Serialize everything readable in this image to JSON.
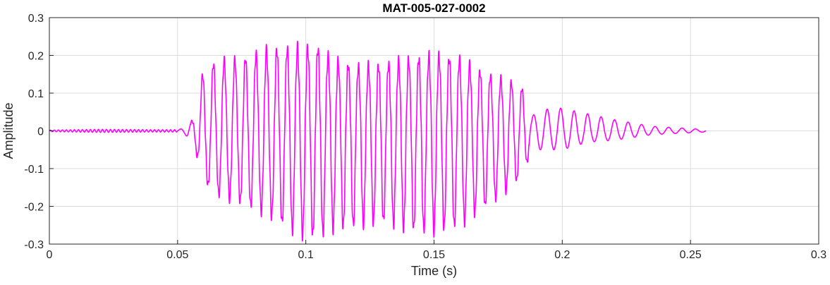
{
  "chart_data": {
    "type": "line",
    "title": "MAT-005-027-0002",
    "xlabel": "Time (s)",
    "ylabel": "Amplitude",
    "xlim": [
      0,
      0.3
    ],
    "ylim": [
      -0.3,
      0.3
    ],
    "x_ticks": [
      0,
      0.05,
      0.1,
      0.15,
      0.2,
      0.25,
      0.3
    ],
    "x_tick_labels": [
      "0",
      "0.05",
      "0.1",
      "0.15",
      "0.2",
      "0.25",
      "0.3"
    ],
    "y_ticks": [
      -0.3,
      -0.2,
      -0.1,
      0,
      0.1,
      0.2,
      0.3
    ],
    "y_tick_labels": [
      "-0.3",
      "-0.2",
      "-0.1",
      "0",
      "0.1",
      "0.2",
      "0.3"
    ],
    "grid": true,
    "series": [
      {
        "color": "#ff00ff",
        "x_range": [
          0,
          0.256
        ],
        "envelope": [
          {
            "t": 0.0,
            "max": 0.002,
            "min": -0.002
          },
          {
            "t": 0.02,
            "max": 0.004,
            "min": -0.004
          },
          {
            "t": 0.04,
            "max": 0.003,
            "min": -0.003
          },
          {
            "t": 0.05,
            "max": 0.003,
            "min": -0.003
          },
          {
            "t": 0.053,
            "max": 0.008,
            "min": -0.01
          },
          {
            "t": 0.056,
            "max": 0.03,
            "min": -0.035
          },
          {
            "t": 0.058,
            "max": 0.12,
            "min": -0.075
          },
          {
            "t": 0.061,
            "max": 0.17,
            "min": -0.14
          },
          {
            "t": 0.066,
            "max": 0.185,
            "min": -0.17
          },
          {
            "t": 0.075,
            "max": 0.19,
            "min": -0.19
          },
          {
            "t": 0.085,
            "max": 0.215,
            "min": -0.22
          },
          {
            "t": 0.095,
            "max": 0.22,
            "min": -0.265
          },
          {
            "t": 0.1,
            "max": 0.22,
            "min": -0.28
          },
          {
            "t": 0.105,
            "max": 0.22,
            "min": -0.28
          },
          {
            "t": 0.11,
            "max": 0.19,
            "min": -0.26
          },
          {
            "t": 0.12,
            "max": 0.17,
            "min": -0.25
          },
          {
            "t": 0.13,
            "max": 0.175,
            "min": -0.24
          },
          {
            "t": 0.14,
            "max": 0.19,
            "min": -0.26
          },
          {
            "t": 0.15,
            "max": 0.2,
            "min": -0.265
          },
          {
            "t": 0.16,
            "max": 0.19,
            "min": -0.25
          },
          {
            "t": 0.17,
            "max": 0.15,
            "min": -0.2
          },
          {
            "t": 0.18,
            "max": 0.13,
            "min": -0.15
          },
          {
            "t": 0.185,
            "max": 0.11,
            "min": -0.11
          },
          {
            "t": 0.188,
            "max": 0.04,
            "min": -0.05
          },
          {
            "t": 0.195,
            "max": 0.06,
            "min": -0.05
          },
          {
            "t": 0.2,
            "max": 0.06,
            "min": -0.05
          },
          {
            "t": 0.21,
            "max": 0.045,
            "min": -0.03
          },
          {
            "t": 0.22,
            "max": 0.03,
            "min": -0.025
          },
          {
            "t": 0.235,
            "max": 0.012,
            "min": -0.01
          },
          {
            "t": 0.25,
            "max": 0.006,
            "min": -0.005
          },
          {
            "t": 0.256,
            "max": 0.003,
            "min": -0.003
          }
        ]
      }
    ]
  }
}
